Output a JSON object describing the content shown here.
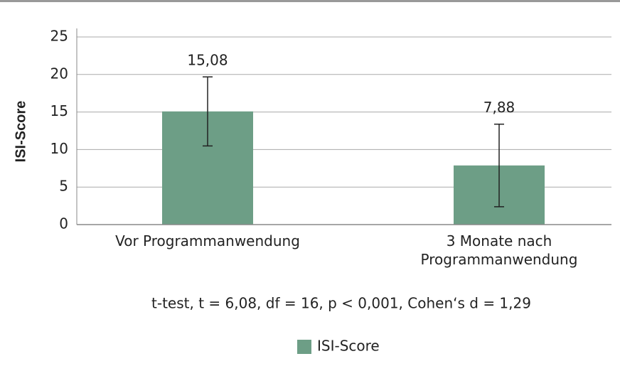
{
  "chart_data": {
    "type": "bar",
    "y_label": "ISI-Score",
    "categories": [
      "Vor Programmanwendung",
      "3 Monate nach Programmanwendung"
    ],
    "series": [
      {
        "name": "ISI-Score",
        "color": "#6d9e86",
        "values": [
          15.08,
          7.88
        ],
        "value_labels": [
          "15,08",
          "7,88"
        ],
        "errors": [
          4.6,
          5.5
        ]
      }
    ],
    "ylim": [
      0,
      25
    ],
    "yticks": [
      0,
      5,
      10,
      15,
      20,
      25
    ],
    "grid": true,
    "annotation": "t-test, t = 6,08, df = 16, p < 0,001, Cohen‘s d = 1,29",
    "legend": "bottom"
  }
}
